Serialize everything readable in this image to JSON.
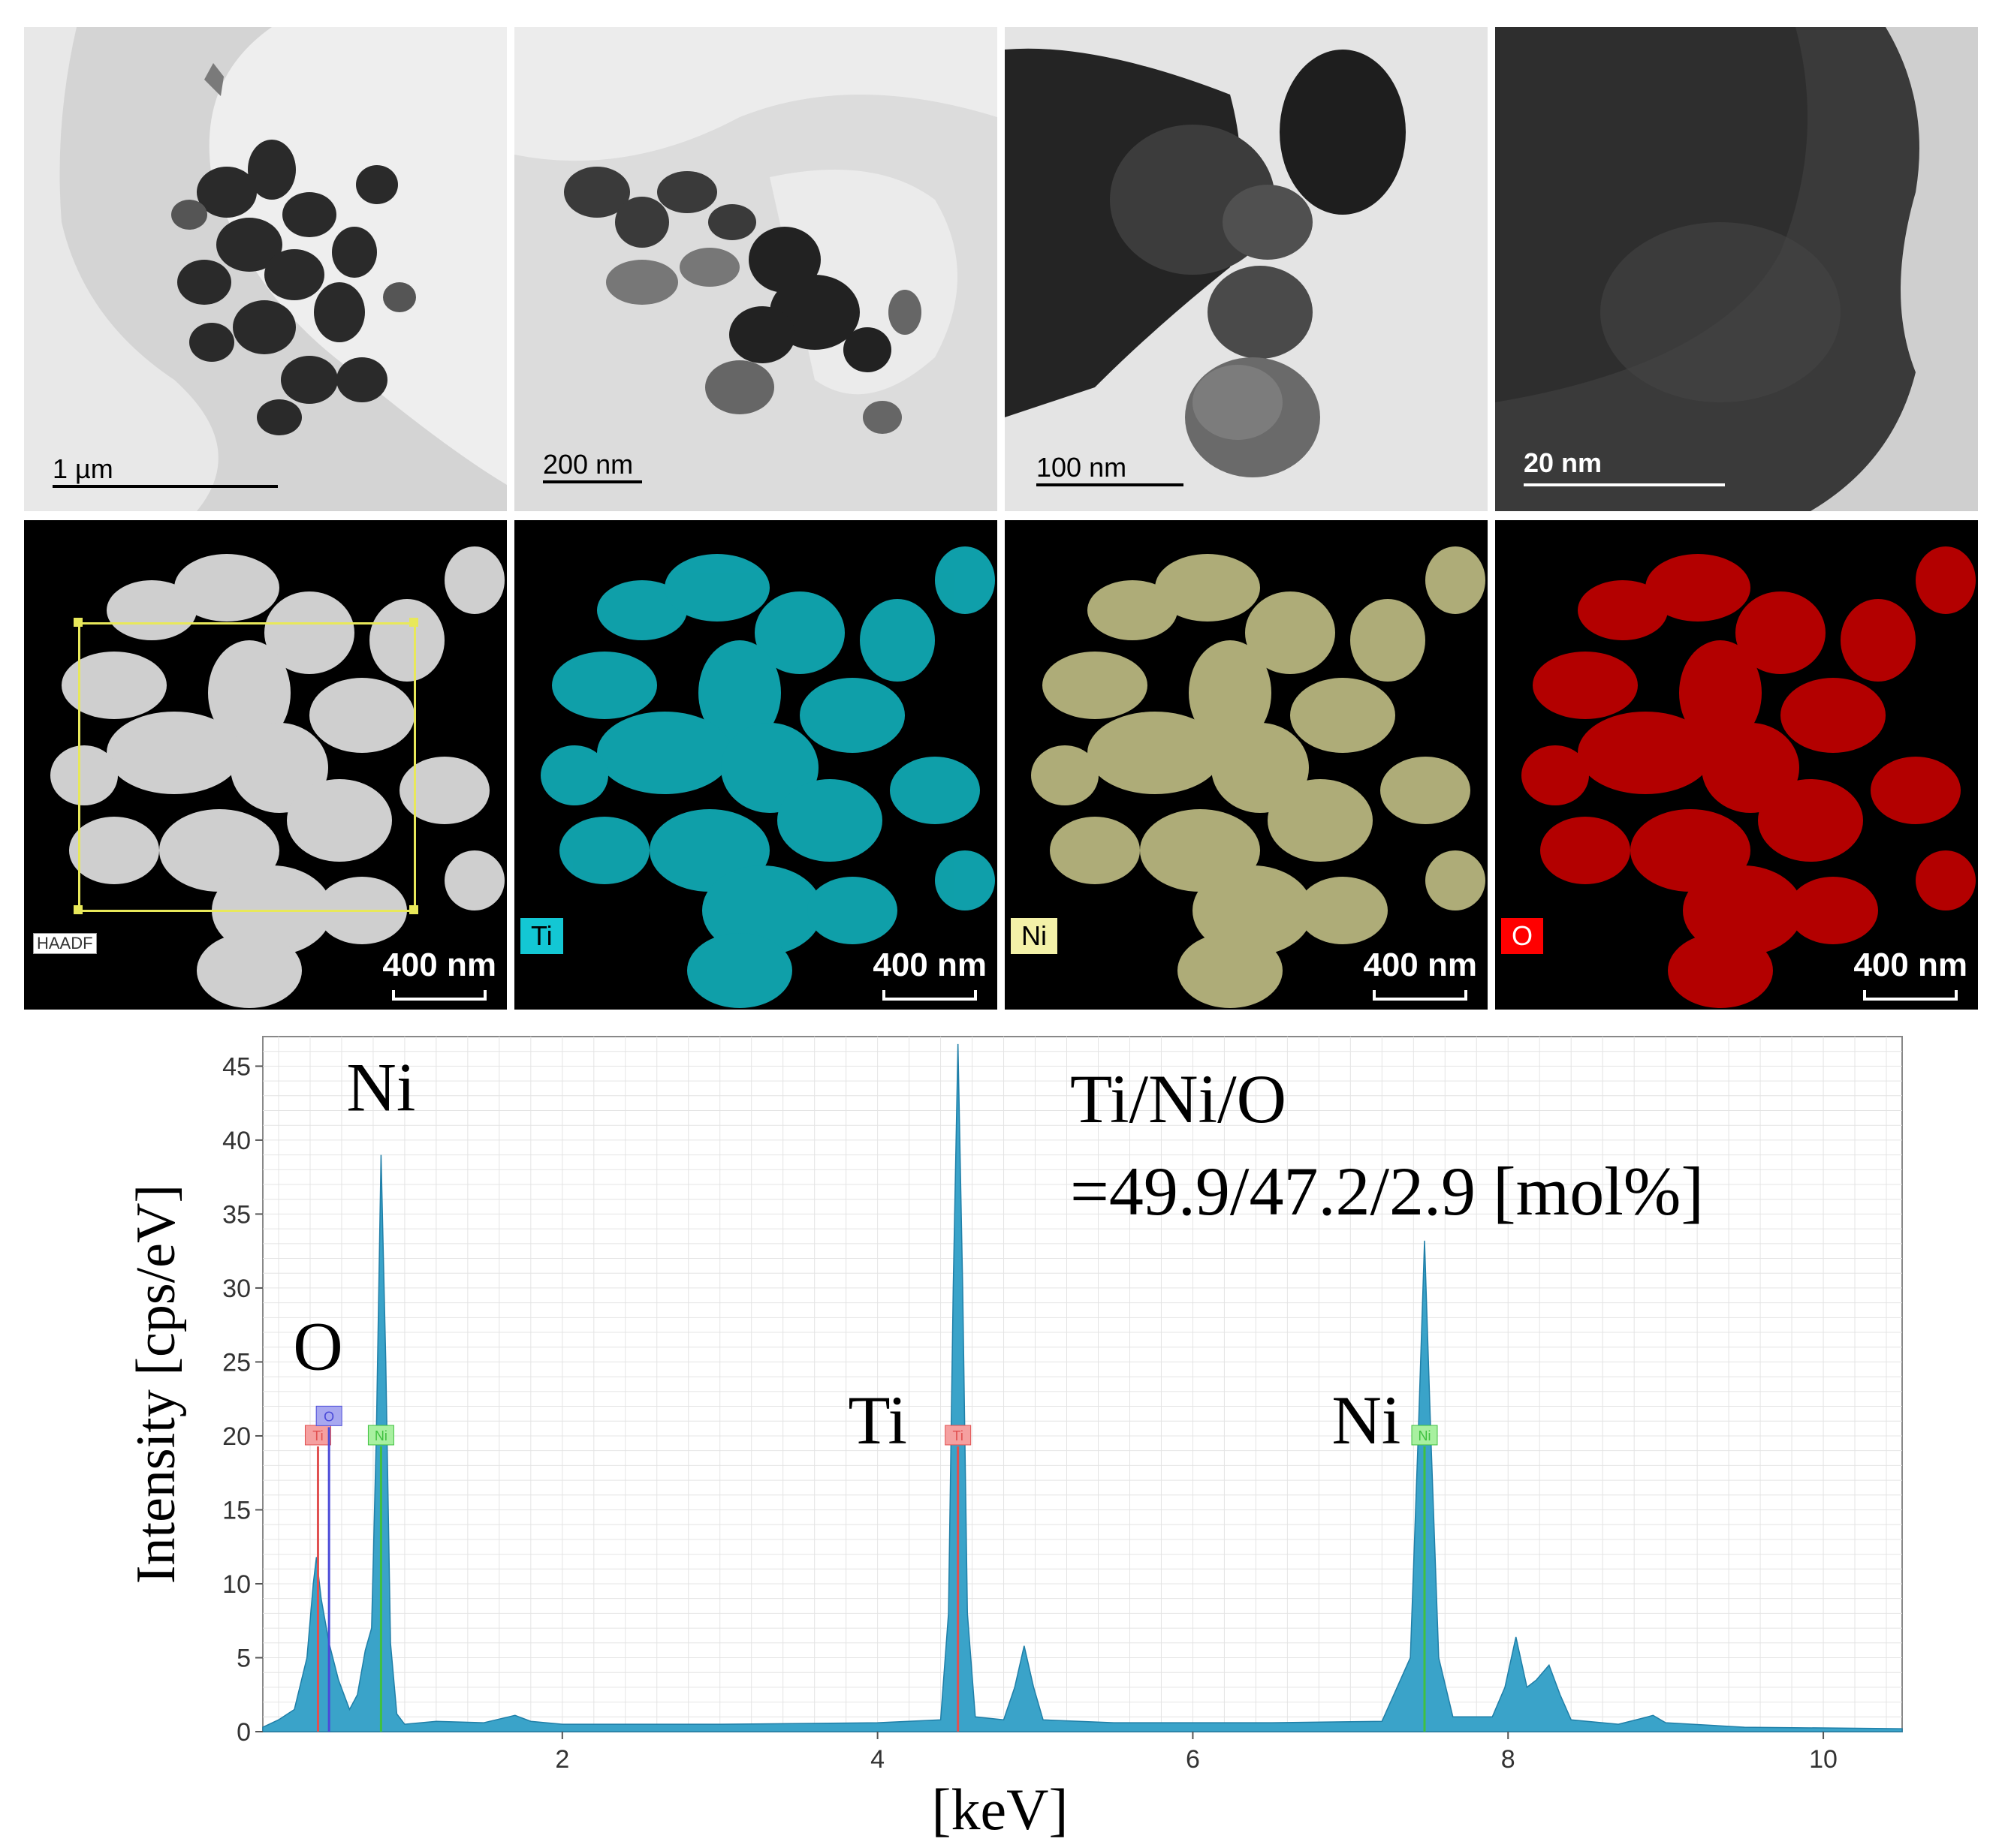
{
  "tem_row": [
    {
      "scale": "1 µm"
    },
    {
      "scale": "200 nm"
    },
    {
      "scale": "100 nm"
    },
    {
      "scale": "20 nm"
    }
  ],
  "eds_maps": [
    {
      "tag": "HAADF",
      "scale": "400 nm",
      "color": "#f2f2f2"
    },
    {
      "tag": "Ti",
      "scale": "400 nm",
      "color": "#13c7d4"
    },
    {
      "tag": "Ni",
      "scale": "400 nm",
      "color": "#e8e6a0"
    },
    {
      "tag": "O",
      "scale": "400 nm",
      "color": "#e00000"
    }
  ],
  "chart_data": {
    "type": "line",
    "xlabel": "[keV]",
    "ylabel": "Intensity [cps/eV]",
    "xlim": [
      0.1,
      10.5
    ],
    "ylim": [
      0,
      47
    ],
    "xticks": [
      "2",
      "4",
      "6",
      "8",
      "10"
    ],
    "yticks": [
      "0",
      "5",
      "10",
      "15",
      "20",
      "25",
      "30",
      "35",
      "40",
      "45"
    ],
    "fill_color": "#3aa3c9",
    "grid": true,
    "composition_label": {
      "line1": "Ti/Ni/O",
      "line2": "=49.9/47.2/2.9 [mol%]"
    },
    "peak_labels": [
      {
        "text": "Ni",
        "x": 0.85,
        "y": 42
      },
      {
        "text": "O",
        "x": 0.45,
        "y": 24.5
      },
      {
        "text": "Ti",
        "x": 4.0,
        "y": 19.5
      },
      {
        "text": "Ni",
        "x": 7.1,
        "y": 19.5
      }
    ],
    "markers": [
      {
        "tag": "Ti",
        "x": 0.45,
        "y": 20,
        "color": "#e05050",
        "bg": "#f5a0a0"
      },
      {
        "tag": "O",
        "x": 0.52,
        "y": 21.3,
        "color": "#4a4ad8",
        "bg": "#a8a8f0"
      },
      {
        "tag": "Ni",
        "x": 0.85,
        "y": 20,
        "color": "#40c040",
        "bg": "#a8f0a0"
      },
      {
        "tag": "Ti",
        "x": 4.51,
        "y": 20,
        "color": "#e05050",
        "bg": "#f5a0a0"
      },
      {
        "tag": "Ni",
        "x": 7.47,
        "y": 20,
        "color": "#40c040",
        "bg": "#a8f0a0"
      }
    ],
    "spectrum": [
      [
        0.1,
        0.3
      ],
      [
        0.2,
        0.8
      ],
      [
        0.3,
        1.5
      ],
      [
        0.38,
        5
      ],
      [
        0.42,
        10
      ],
      [
        0.44,
        11.8
      ],
      [
        0.47,
        9
      ],
      [
        0.52,
        6
      ],
      [
        0.58,
        3.5
      ],
      [
        0.65,
        1.5
      ],
      [
        0.7,
        2.5
      ],
      [
        0.75,
        5.5
      ],
      [
        0.79,
        7
      ],
      [
        0.82,
        20
      ],
      [
        0.85,
        39
      ],
      [
        0.88,
        25
      ],
      [
        0.91,
        6
      ],
      [
        0.95,
        1.2
      ],
      [
        1.0,
        0.5
      ],
      [
        1.2,
        0.7
      ],
      [
        1.5,
        0.6
      ],
      [
        1.7,
        1.1
      ],
      [
        1.8,
        0.7
      ],
      [
        2.0,
        0.5
      ],
      [
        3.0,
        0.5
      ],
      [
        4.0,
        0.6
      ],
      [
        4.4,
        0.8
      ],
      [
        4.45,
        8
      ],
      [
        4.48,
        30
      ],
      [
        4.51,
        46.5
      ],
      [
        4.54,
        30
      ],
      [
        4.57,
        8
      ],
      [
        4.62,
        1
      ],
      [
        4.8,
        0.8
      ],
      [
        4.87,
        3
      ],
      [
        4.93,
        5.8
      ],
      [
        4.99,
        3
      ],
      [
        5.05,
        0.8
      ],
      [
        5.5,
        0.6
      ],
      [
        6.5,
        0.6
      ],
      [
        7.2,
        0.7
      ],
      [
        7.38,
        5
      ],
      [
        7.43,
        20
      ],
      [
        7.47,
        33.2
      ],
      [
        7.51,
        20
      ],
      [
        7.56,
        5
      ],
      [
        7.65,
        1
      ],
      [
        7.9,
        1
      ],
      [
        7.98,
        3
      ],
      [
        8.05,
        6.4
      ],
      [
        8.12,
        3
      ],
      [
        8.18,
        3.5
      ],
      [
        8.26,
        4.5
      ],
      [
        8.33,
        2.5
      ],
      [
        8.4,
        0.8
      ],
      [
        8.7,
        0.5
      ],
      [
        8.85,
        0.9
      ],
      [
        8.92,
        1.1
      ],
      [
        9.0,
        0.6
      ],
      [
        9.5,
        0.3
      ],
      [
        10.5,
        0.2
      ]
    ]
  }
}
